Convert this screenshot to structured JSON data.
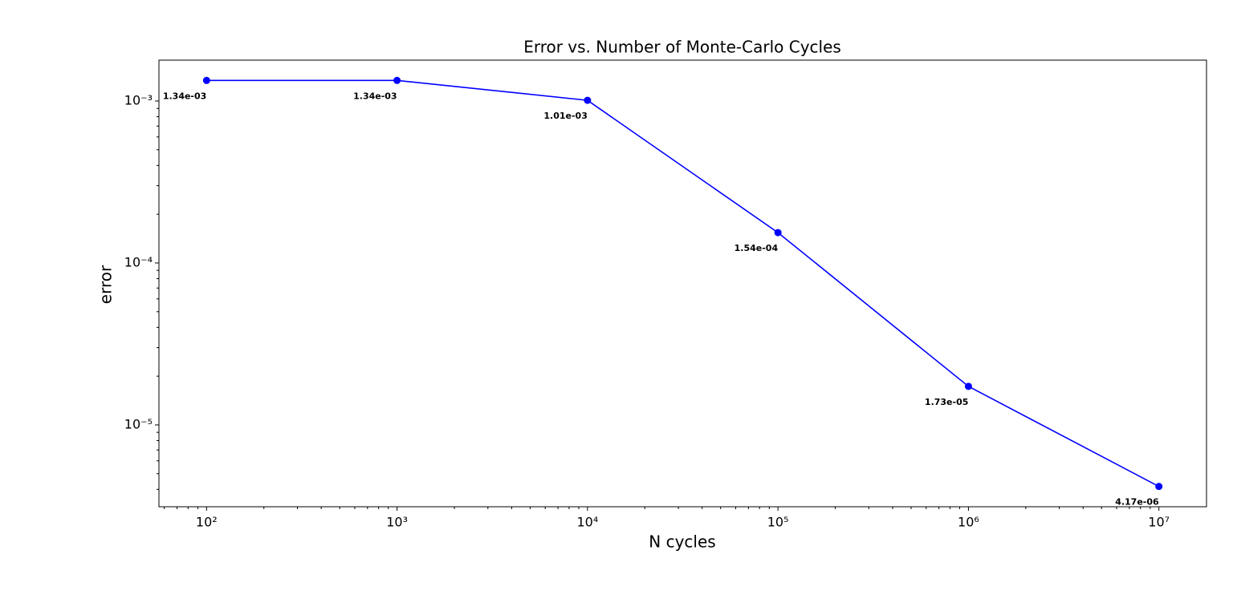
{
  "chart_data": {
    "type": "line",
    "title": "Error vs. Number of Monte-Carlo Cycles",
    "x_label": "N cycles",
    "y_label": "error",
    "x": [
      100,
      1000,
      10000,
      100000,
      1000000,
      10000000
    ],
    "series": [
      {
        "color": "#0000ff",
        "values": [
          0.00134,
          0.00134,
          0.00101,
          0.000154,
          1.73e-05,
          4.17e-06
        ],
        "value_labels": [
          "1.34e-03",
          "1.34e-03",
          "1.01e-03",
          "1.54e-04",
          "1.73e-05",
          "4.17e-06"
        ]
      }
    ],
    "x_log": true,
    "y_log": true,
    "xlim": [
      56.23,
      17782794
    ],
    "ylim": [
      3.124e-06,
      0.001788
    ],
    "xticks": [
      {
        "value": 100,
        "label": "10²"
      },
      {
        "value": 1000,
        "label": "10³"
      },
      {
        "value": 10000,
        "label": "10⁴"
      },
      {
        "value": 100000,
        "label": "10⁵"
      },
      {
        "value": 1000000,
        "label": "10⁶"
      },
      {
        "value": 10000000,
        "label": "10⁷"
      }
    ],
    "yticks": [
      {
        "value": 1e-05,
        "label": "10⁻⁵"
      },
      {
        "value": 0.0001,
        "label": "10⁻⁴"
      },
      {
        "value": 0.001,
        "label": "10⁻³"
      }
    ],
    "xminorticks": [
      60,
      70,
      80,
      90,
      200,
      300,
      400,
      500,
      600,
      700,
      800,
      900,
      2000,
      3000,
      4000,
      5000,
      6000,
      7000,
      8000,
      9000,
      20000,
      30000,
      40000,
      50000,
      60000,
      70000,
      80000,
      90000,
      200000,
      300000,
      400000,
      500000,
      600000,
      700000,
      800000,
      900000,
      2000000,
      3000000,
      4000000,
      5000000,
      6000000,
      7000000,
      8000000,
      9000000
    ],
    "yminorticks": [
      4e-06,
      5e-06,
      6e-06,
      7e-06,
      8e-06,
      9e-06,
      2e-05,
      3e-05,
      4e-05,
      5e-05,
      6e-05,
      7e-05,
      8e-05,
      9e-05,
      0.0002,
      0.0003,
      0.0004,
      0.0005,
      0.0006,
      0.0007,
      0.0008,
      0.0009
    ],
    "grid": false
  }
}
